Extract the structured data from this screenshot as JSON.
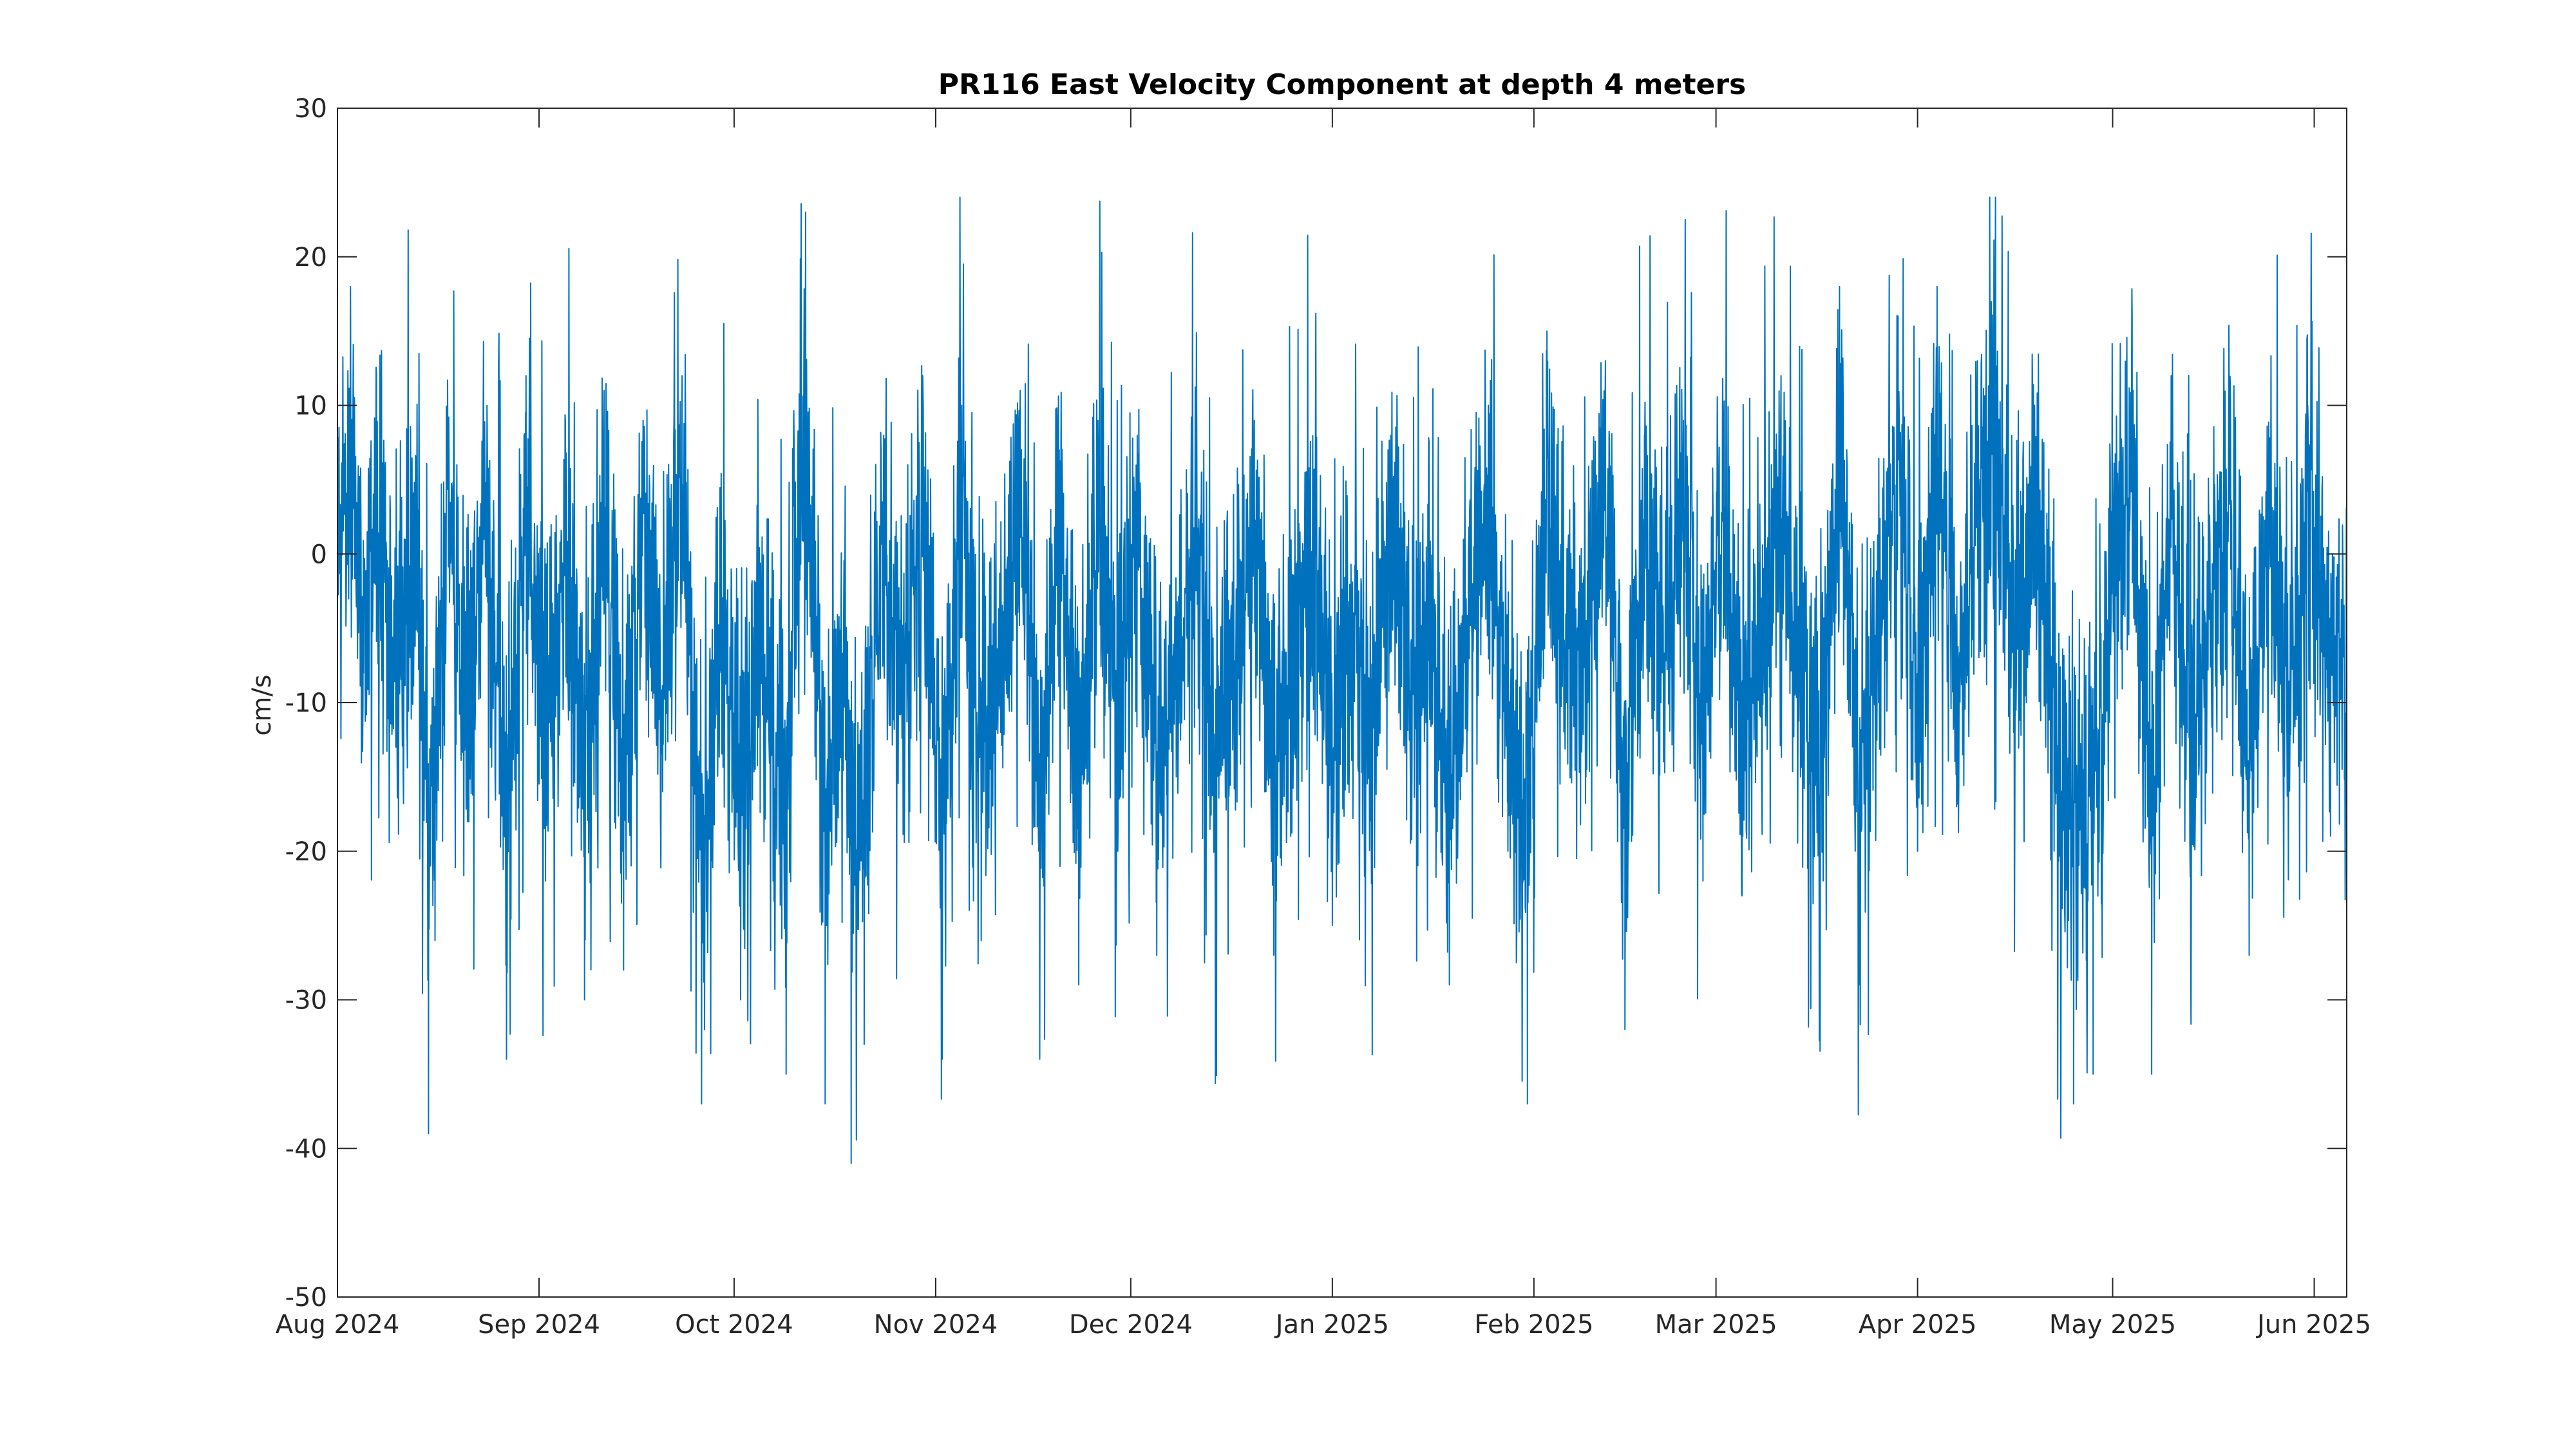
{
  "chart_data": {
    "type": "line",
    "title": "PR116 East Velocity Component at depth 4 meters",
    "xlabel": "",
    "ylabel": "cm/s",
    "ylim": [
      -50,
      30
    ],
    "xlim": [
      "2024-08-01",
      "2025-06-06"
    ],
    "yticks": [
      "30",
      "20",
      "10",
      "0",
      "-10",
      "-20",
      "-30",
      "-40",
      "-50"
    ],
    "xticks": [
      {
        "date": "2024-08-01",
        "label": "Aug 2024"
      },
      {
        "date": "2024-09-01",
        "label": "Sep 2024"
      },
      {
        "date": "2024-10-01",
        "label": "Oct 2024"
      },
      {
        "date": "2024-11-01",
        "label": "Nov 2024"
      },
      {
        "date": "2024-12-01",
        "label": "Dec 2024"
      },
      {
        "date": "2025-01-01",
        "label": "Jan 2025"
      },
      {
        "date": "2025-02-01",
        "label": "Feb 2025"
      },
      {
        "date": "2025-03-01",
        "label": "Mar 2025"
      },
      {
        "date": "2025-04-01",
        "label": "Apr 2025"
      },
      {
        "date": "2025-05-01",
        "label": "May 2025"
      },
      {
        "date": "2025-06-01",
        "label": "Jun 2025"
      }
    ],
    "grid": false,
    "legend": "none",
    "series": [
      {
        "color": "#0072bd",
        "x": [
          "2024-08-01",
          "2024-08-03",
          "2024-08-05",
          "2024-08-07",
          "2024-08-10",
          "2024-08-13",
          "2024-08-15",
          "2024-08-16",
          "2024-08-18",
          "2024-08-21",
          "2024-08-24",
          "2024-08-27",
          "2024-08-30",
          "2024-09-02",
          "2024-09-05",
          "2024-09-08",
          "2024-09-11",
          "2024-09-14",
          "2024-09-17",
          "2024-09-20",
          "2024-09-23",
          "2024-09-26",
          "2024-09-29",
          "2024-10-02",
          "2024-10-05",
          "2024-10-07",
          "2024-10-09",
          "2024-10-10",
          "2024-10-12",
          "2024-10-15",
          "2024-10-18",
          "2024-10-19",
          "2024-10-21",
          "2024-10-24",
          "2024-10-27",
          "2024-10-30",
          "2024-11-02",
          "2024-11-05",
          "2024-11-08",
          "2024-11-11",
          "2024-11-14",
          "2024-11-17",
          "2024-11-20",
          "2024-11-23",
          "2024-11-26",
          "2024-11-29",
          "2024-12-02",
          "2024-12-05",
          "2024-12-08",
          "2024-12-11",
          "2024-12-14",
          "2024-12-17",
          "2024-12-20",
          "2024-12-23",
          "2024-12-26",
          "2024-12-29",
          "2025-01-01",
          "2025-01-04",
          "2025-01-07",
          "2025-01-10",
          "2025-01-13",
          "2025-01-16",
          "2025-01-19",
          "2025-01-22",
          "2025-01-25",
          "2025-01-28",
          "2025-01-31",
          "2025-02-03",
          "2025-02-06",
          "2025-02-09",
          "2025-02-12",
          "2025-02-15",
          "2025-02-18",
          "2025-02-21",
          "2025-02-24",
          "2025-02-27",
          "2025-03-02",
          "2025-03-05",
          "2025-03-08",
          "2025-03-11",
          "2025-03-14",
          "2025-03-17",
          "2025-03-20",
          "2025-03-23",
          "2025-03-26",
          "2025-03-29",
          "2025-04-01",
          "2025-04-04",
          "2025-04-07",
          "2025-04-10",
          "2025-04-13",
          "2025-04-16",
          "2025-04-19",
          "2025-04-22",
          "2025-04-23",
          "2025-04-25",
          "2025-04-28",
          "2025-05-01",
          "2025-05-04",
          "2025-05-07",
          "2025-05-10",
          "2025-05-13",
          "2025-05-16",
          "2025-05-19",
          "2025-05-22",
          "2025-05-25",
          "2025-05-28",
          "2025-05-31",
          "2025-06-03",
          "2025-06-06"
        ],
        "y": [
          2,
          18,
          -8,
          12,
          -13,
          6,
          -39,
          -26,
          8,
          -18,
          10,
          -34,
          12,
          -22,
          4,
          -30,
          11,
          -28,
          9,
          -16,
          12,
          -37,
          -8,
          -30,
          -12,
          -22,
          -35,
          -5,
          23,
          -37,
          -10,
          -41,
          -33,
          8,
          -15,
          12,
          -34,
          10,
          -26,
          -12,
          11,
          -34,
          7,
          -29,
          5,
          -20,
          8,
          -27,
          -15,
          6,
          -25,
          -8,
          9,
          -27,
          -12,
          3,
          -25,
          -8,
          -20,
          8,
          -15,
          -10,
          -29,
          -5,
          10,
          -20,
          -37,
          15,
          -10,
          -15,
          13,
          -32,
          8,
          -10,
          9,
          -22,
          10,
          -23,
          -8,
          12,
          -15,
          -26,
          18,
          -29,
          -10,
          16,
          -20,
          18,
          -17,
          9,
          15,
          -10,
          10,
          -20,
          -33,
          -37,
          -35,
          2,
          16,
          -35,
          12,
          -27,
          -5,
          10,
          -27,
          8,
          -16,
          10,
          -9,
          -12
        ]
      }
    ]
  }
}
